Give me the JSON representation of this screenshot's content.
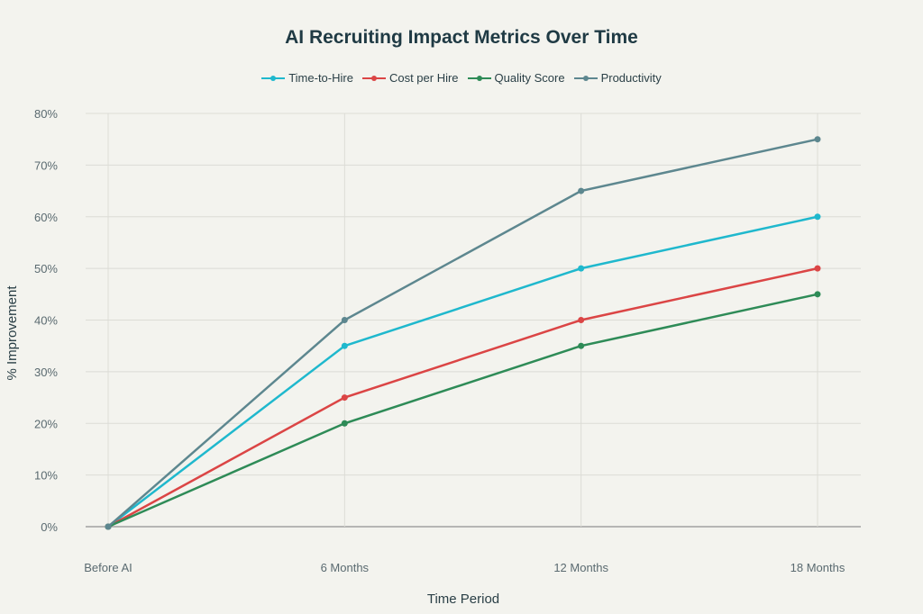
{
  "chart_data": {
    "type": "line",
    "title": "AI Recruiting Impact Metrics Over Time",
    "xlabel": "Time Period",
    "ylabel": "% Improvement",
    "categories": [
      "Before AI",
      "6 Months",
      "12 Months",
      "18 Months"
    ],
    "ylim": [
      0,
      80
    ],
    "yticks": [
      "0%",
      "10%",
      "20%",
      "30%",
      "40%",
      "50%",
      "60%",
      "70%",
      "80%"
    ],
    "grid": true,
    "legend_position": "top-center",
    "series": [
      {
        "name": "Time-to-Hire",
        "color": "#1fb8cd",
        "values": [
          0,
          35,
          50,
          60
        ]
      },
      {
        "name": "Cost per Hire",
        "color": "#db4545",
        "values": [
          0,
          25,
          40,
          50
        ]
      },
      {
        "name": "Quality Score",
        "color": "#2e8b57",
        "values": [
          0,
          20,
          35,
          45
        ]
      },
      {
        "name": "Productivity",
        "color": "#5d878f",
        "values": [
          0,
          40,
          65,
          75
        ]
      }
    ]
  }
}
